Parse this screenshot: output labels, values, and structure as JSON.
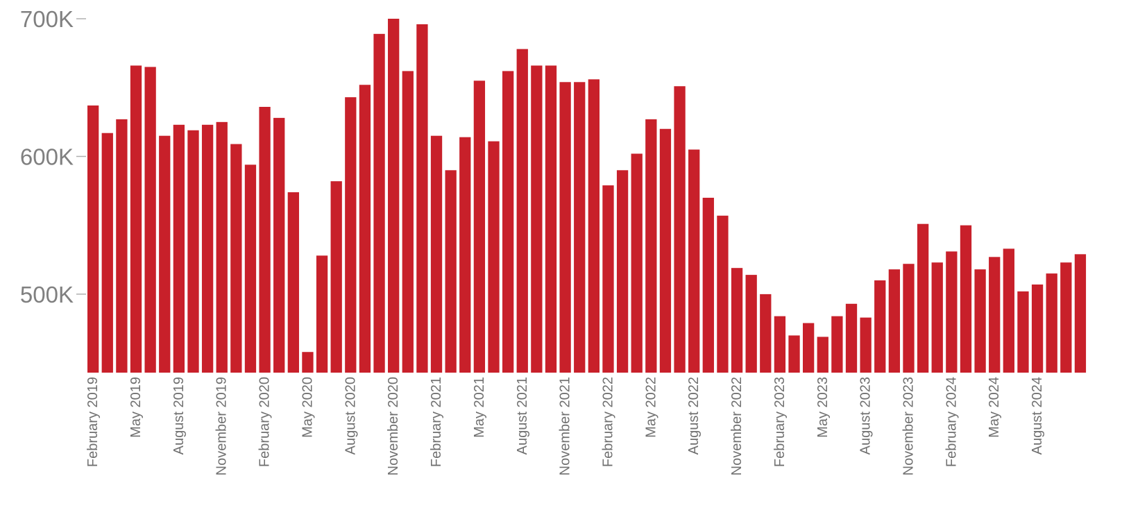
{
  "chart_data": {
    "type": "bar",
    "title": "",
    "xlabel": "",
    "ylabel": "",
    "bar_color": "#C8202A",
    "ylim": [
      443000,
      700000
    ],
    "yticks": [
      {
        "value": 500000,
        "label": "500K"
      },
      {
        "value": 600000,
        "label": "600K"
      },
      {
        "value": 700000,
        "label": "700K"
      }
    ],
    "x_tick_labels": [
      {
        "index": 0,
        "label": "February 2019"
      },
      {
        "index": 3,
        "label": "May 2019"
      },
      {
        "index": 6,
        "label": "August 2019"
      },
      {
        "index": 9,
        "label": "November 2019"
      },
      {
        "index": 12,
        "label": "February 2020"
      },
      {
        "index": 15,
        "label": "May 2020"
      },
      {
        "index": 18,
        "label": "August 2020"
      },
      {
        "index": 21,
        "label": "November 2020"
      },
      {
        "index": 24,
        "label": "February 2021"
      },
      {
        "index": 27,
        "label": "May 2021"
      },
      {
        "index": 30,
        "label": "August 2021"
      },
      {
        "index": 33,
        "label": "November 2021"
      },
      {
        "index": 36,
        "label": "February 2022"
      },
      {
        "index": 39,
        "label": "May 2022"
      },
      {
        "index": 42,
        "label": "August 2022"
      },
      {
        "index": 45,
        "label": "November 2022"
      },
      {
        "index": 48,
        "label": "February 2023"
      },
      {
        "index": 51,
        "label": "May 2023"
      },
      {
        "index": 54,
        "label": "August 2023"
      },
      {
        "index": 57,
        "label": "November 2023"
      },
      {
        "index": 60,
        "label": "February 2024"
      },
      {
        "index": 63,
        "label": "May 2024"
      },
      {
        "index": 66,
        "label": "August 2024"
      }
    ],
    "categories": [
      "Feb 2019",
      "Mar 2019",
      "Apr 2019",
      "May 2019",
      "Jun 2019",
      "Jul 2019",
      "Aug 2019",
      "Sep 2019",
      "Oct 2019",
      "Nov 2019",
      "Dec 2019",
      "Jan 2020",
      "Feb 2020",
      "Mar 2020",
      "Apr 2020",
      "May 2020",
      "Jun 2020",
      "Jul 2020",
      "Aug 2020",
      "Sep 2020",
      "Oct 2020",
      "Nov 2020",
      "Dec 2020",
      "Jan 2021",
      "Feb 2021",
      "Mar 2021",
      "Apr 2021",
      "May 2021",
      "Jun 2021",
      "Jul 2021",
      "Aug 2021",
      "Sep 2021",
      "Oct 2021",
      "Nov 2021",
      "Dec 2021",
      "Jan 2022",
      "Feb 2022",
      "Mar 2022",
      "Apr 2022",
      "May 2022",
      "Jun 2022",
      "Jul 2022",
      "Aug 2022",
      "Sep 2022",
      "Oct 2022",
      "Nov 2022",
      "Dec 2022",
      "Jan 2023",
      "Feb 2023",
      "Mar 2023",
      "Apr 2023",
      "May 2023",
      "Jun 2023",
      "Jul 2023",
      "Aug 2023",
      "Sep 2023",
      "Oct 2023",
      "Nov 2023",
      "Dec 2023",
      "Jan 2024",
      "Feb 2024",
      "Mar 2024",
      "Apr 2024",
      "May 2024",
      "Jun 2024",
      "Jul 2024",
      "Aug 2024",
      "Sep 2024",
      "Oct 2024",
      "Nov 2024"
    ],
    "values": [
      637000,
      617000,
      627000,
      666000,
      665000,
      615000,
      623000,
      619000,
      623000,
      625000,
      609000,
      594000,
      636000,
      628000,
      574000,
      458000,
      528000,
      582000,
      643000,
      652000,
      689000,
      700000,
      662000,
      696000,
      615000,
      590000,
      614000,
      655000,
      611000,
      662000,
      678000,
      666000,
      666000,
      654000,
      654000,
      656000,
      579000,
      590000,
      602000,
      627000,
      620000,
      651000,
      605000,
      570000,
      557000,
      519000,
      514000,
      500000,
      484000,
      470000,
      479000,
      469000,
      484000,
      493000,
      483000,
      510000,
      518000,
      522000,
      551000,
      523000,
      531000,
      550000,
      518000,
      527000,
      533000,
      502000,
      507000,
      515000,
      523000,
      529000
    ]
  }
}
